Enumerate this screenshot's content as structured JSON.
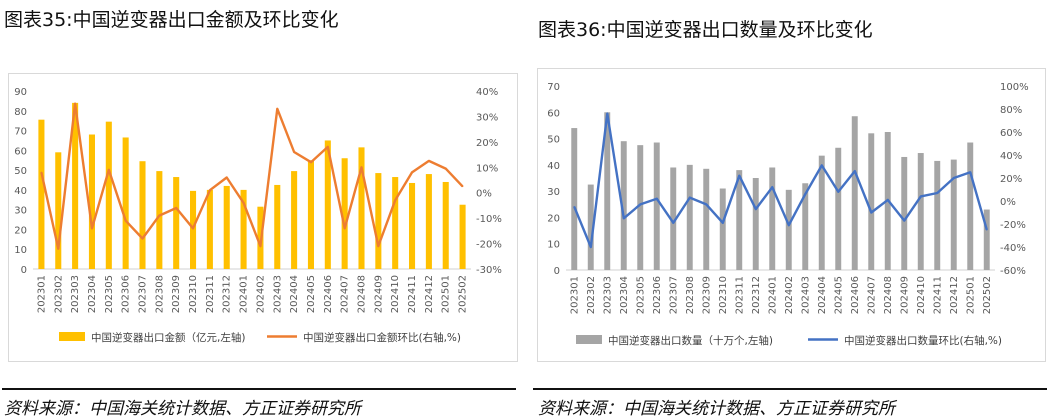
{
  "panels": [
    {
      "title": "图表35:中国逆变器出口金额及环比变化",
      "source": "资料来源：中国海关统计数据、方正证券研究所"
    },
    {
      "title": "图表36:中国逆变器出口数量及环比变化",
      "source": "资料来源：中国海关统计数据、方正证券研究所"
    }
  ],
  "chart_data": [
    {
      "type": "bar",
      "categories": [
        "202301",
        "202302",
        "202303",
        "202304",
        "202305",
        "202306",
        "202307",
        "202308",
        "202309",
        "202310",
        "202311",
        "202312",
        "202401",
        "202402",
        "202403",
        "202404",
        "202405",
        "202406",
        "202407",
        "202408",
        "202409",
        "202410",
        "202411",
        "202412",
        "202501",
        "202502"
      ],
      "series": [
        {
          "name": "中国逆变器出口金额（亿元,左轴)",
          "type": "bar",
          "axis": "left",
          "color": "#FFC000",
          "values": [
            75.5,
            59,
            84,
            68,
            74.5,
            66.5,
            54.5,
            49.5,
            46.5,
            39.5,
            40,
            42,
            40,
            31.5,
            42.5,
            49.5,
            55,
            65,
            56,
            61.5,
            48.5,
            46.5,
            43.5,
            48,
            44,
            32.5
          ]
        },
        {
          "name": "中国逆变器出口金额环比(右轴,%)",
          "type": "line",
          "axis": "right",
          "color": "#ED7D31",
          "values": [
            8,
            -22,
            35,
            -14,
            9,
            -11,
            -18,
            -9,
            -6,
            -14,
            1,
            6,
            -4,
            -21,
            33,
            16,
            12,
            18,
            -14,
            10,
            -21,
            -3,
            8,
            12.5,
            9.5,
            2.5
          ]
        }
      ],
      "y_left": {
        "min": 0,
        "max": 90,
        "ticks": [
          "0",
          "10",
          "20",
          "30",
          "40",
          "50",
          "60",
          "70",
          "80",
          "90"
        ]
      },
      "y_right": {
        "min": -30,
        "max": 40,
        "ticks": [
          "-30%",
          "-20%",
          "-10%",
          "0%",
          "10%",
          "20%",
          "30%",
          "40%"
        ]
      },
      "grid": false,
      "legend_position": "bottom"
    },
    {
      "type": "bar",
      "categories": [
        "202301",
        "202302",
        "202303",
        "202304",
        "202305",
        "202306",
        "202307",
        "202308",
        "202309",
        "202310",
        "202311",
        "202312",
        "202401",
        "202402",
        "202403",
        "202404",
        "202405",
        "202406",
        "202407",
        "202408",
        "202409",
        "202410",
        "202411",
        "202412",
        "202501",
        "202502"
      ],
      "series": [
        {
          "name": "中国逆变器出口数量（十万个,左轴)",
          "type": "bar",
          "axis": "left",
          "color": "#A5A5A5",
          "values": [
            54,
            32.5,
            60,
            49,
            47.5,
            48.5,
            39,
            40,
            38.5,
            31,
            38,
            35,
            39,
            30.5,
            33,
            43.5,
            46.5,
            58.5,
            52,
            52.5,
            43,
            44.5,
            41.5,
            42,
            48.5,
            23
          ]
        },
        {
          "name": "中国逆变器出口数量环比(右轴,%)",
          "type": "line",
          "axis": "right",
          "color": "#4472C4",
          "values": [
            -5,
            -40,
            76,
            -15,
            -3,
            2,
            -19,
            3,
            -3,
            -19,
            22,
            -7,
            12,
            -21,
            6,
            31,
            8,
            26,
            -10,
            1,
            -17,
            4,
            7,
            20,
            25,
            -25
          ]
        }
      ],
      "y_left": {
        "min": 0,
        "max": 70,
        "ticks": [
          "0",
          "10",
          "20",
          "30",
          "40",
          "50",
          "60",
          "70"
        ]
      },
      "y_right": {
        "min": -60,
        "max": 100,
        "ticks": [
          "-60%",
          "-40%",
          "-20%",
          "0%",
          "20%",
          "40%",
          "60%",
          "80%",
          "100%"
        ]
      },
      "grid": false,
      "legend_position": "bottom"
    }
  ]
}
